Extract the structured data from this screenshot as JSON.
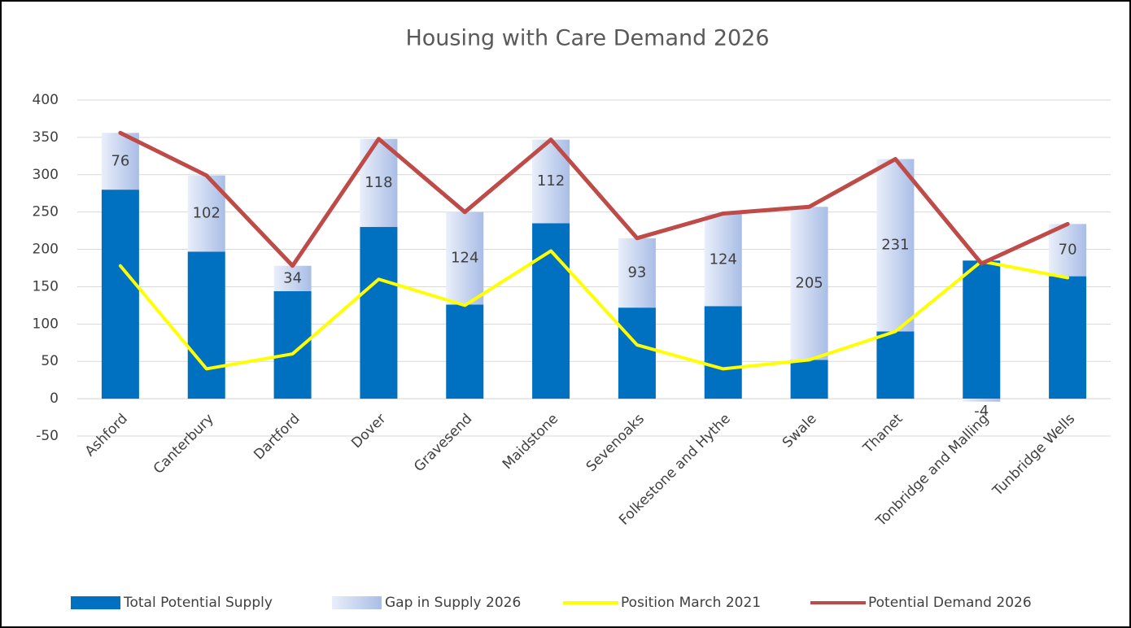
{
  "chart_data": {
    "type": "combo",
    "title": "Housing with Care Demand 2026",
    "stacked": true,
    "categories": [
      "Ashford",
      "Canterbury",
      "Dartford",
      "Dover",
      "Gravesend",
      "Maidstone",
      "Sevenoaks",
      "Folkestone and Hythe",
      "Swale",
      "Thanet",
      "Tonbridge and Malling",
      "Tunbridge Wells"
    ],
    "series": [
      {
        "name": "Total Potential Supply",
        "type": "bar",
        "color": "#0070c0",
        "values": [
          280,
          197,
          144,
          230,
          126,
          235,
          122,
          124,
          52,
          90,
          185,
          164
        ]
      },
      {
        "name": "Gap in Supply 2026",
        "type": "bar",
        "color": "#b4c7e7",
        "data_labels": true,
        "values": [
          76,
          102,
          34,
          118,
          124,
          112,
          93,
          124,
          205,
          231,
          -4,
          70
        ]
      },
      {
        "name": "Position March 2021",
        "type": "line",
        "color": "#ffff00",
        "values": [
          178,
          40,
          60,
          160,
          125,
          198,
          72,
          40,
          52,
          90,
          184,
          162
        ]
      },
      {
        "name": "Potential Demand 2026",
        "type": "line",
        "color": "#be4b48",
        "values": [
          356,
          299,
          178,
          348,
          250,
          347,
          215,
          248,
          257,
          321,
          181,
          234
        ]
      }
    ],
    "ylim": [
      -50,
      400
    ],
    "yticks": [
      -50,
      0,
      50,
      100,
      150,
      200,
      250,
      300,
      350,
      400
    ],
    "grid": true,
    "legend": "bottom"
  }
}
